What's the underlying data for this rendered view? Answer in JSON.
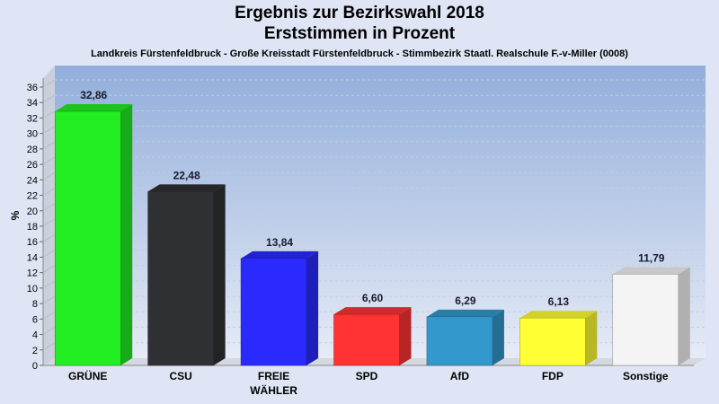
{
  "chart_data": {
    "type": "bar",
    "title": "Ergebnis zur Bezirkswahl 2018",
    "title2": "Erststimmen in Prozent",
    "subtitle": "Landkreis Fürstenfeldbruck - Große Kreisstadt Fürstenfeldbruck - Stimmbezirk Staatl. Realschule F.-v-Miller (0008)",
    "ylabel": "%",
    "ylim": [
      0,
      36
    ],
    "yticks": [
      "0",
      "2",
      "4",
      "6",
      "8",
      "10",
      "12",
      "14",
      "16",
      "18",
      "20",
      "22",
      "24",
      "26",
      "28",
      "30",
      "32",
      "34",
      "36"
    ],
    "categories": [
      {
        "label": "GRÜNE",
        "label2": ""
      },
      {
        "label": "CSU",
        "label2": ""
      },
      {
        "label": "FREIE",
        "label2": "WÄHLER"
      },
      {
        "label": "SPD",
        "label2": ""
      },
      {
        "label": "AfD",
        "label2": ""
      },
      {
        "label": "FDP",
        "label2": ""
      },
      {
        "label": "Sonstige",
        "label2": ""
      }
    ],
    "values": [
      32.86,
      22.48,
      13.84,
      6.6,
      6.29,
      6.13,
      11.79
    ],
    "value_labels": [
      "32,86",
      "22,48",
      "13,84",
      "6,60",
      "6,29",
      "6,13",
      "11,79"
    ],
    "colors": [
      "#22ee22",
      "#2e3033",
      "#2a2aff",
      "#ff3333",
      "#3399cc",
      "#ffff33",
      "#f4f4f4"
    ],
    "grid": true
  }
}
